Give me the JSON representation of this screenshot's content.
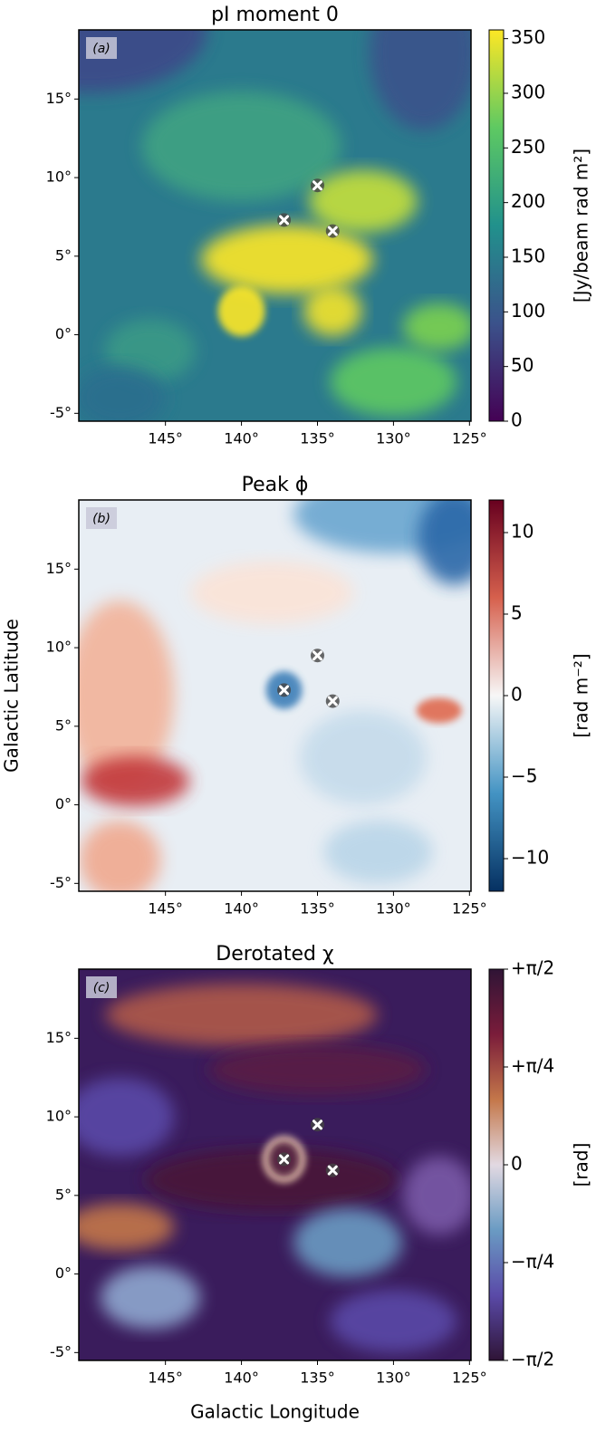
{
  "chart_data": [
    {
      "type": "map",
      "title": "pI moment 0",
      "panel_label": "(a)",
      "xlim": [
        150.7,
        124.9
      ],
      "ylim": [
        -5.5,
        19.4
      ],
      "xticks": [
        {
          "value": 145,
          "label": "145°"
        },
        {
          "value": 140,
          "label": "140°"
        },
        {
          "value": 135,
          "label": "135°"
        },
        {
          "value": 130,
          "label": "130°"
        },
        {
          "value": 125,
          "label": "125°"
        }
      ],
      "yticks": [
        {
          "value": -5,
          "label": "-5°"
        },
        {
          "value": 0,
          "label": "0°"
        },
        {
          "value": 5,
          "label": "5°"
        },
        {
          "value": 10,
          "label": "10°"
        },
        {
          "value": 15,
          "label": "15°"
        }
      ],
      "markers": {
        "x": [
          135,
          137.2,
          134
        ],
        "y": [
          9.5,
          7.3,
          6.6
        ]
      },
      "colorbar": {
        "label": "[Jy/beam rad m²]",
        "clim": [
          0,
          358
        ],
        "ticks": [
          0,
          50,
          100,
          150,
          200,
          250,
          300,
          350
        ],
        "colormap": [
          "#440154",
          "#3b528b",
          "#21918c",
          "#5ec962",
          "#fde725"
        ]
      }
    },
    {
      "type": "map",
      "title": "Peak ϕ",
      "panel_label": "(b)",
      "ylabel": "Galactic Latitude",
      "xlim": [
        150.7,
        124.9
      ],
      "ylim": [
        -5.5,
        19.4
      ],
      "xticks": [
        {
          "value": 145,
          "label": "145°"
        },
        {
          "value": 140,
          "label": "140°"
        },
        {
          "value": 135,
          "label": "135°"
        },
        {
          "value": 130,
          "label": "130°"
        },
        {
          "value": 125,
          "label": "125°"
        }
      ],
      "yticks": [
        {
          "value": -5,
          "label": "-5°"
        },
        {
          "value": 0,
          "label": "0°"
        },
        {
          "value": 5,
          "label": "5°"
        },
        {
          "value": 10,
          "label": "10°"
        },
        {
          "value": 15,
          "label": "15°"
        }
      ],
      "markers": {
        "x": [
          135,
          137.2,
          134
        ],
        "y": [
          9.5,
          7.3,
          6.6
        ]
      },
      "colorbar": {
        "label": "[rad m⁻²]",
        "clim": [
          -12,
          12
        ],
        "ticks": [
          {
            "value": -10,
            "label": "−10"
          },
          {
            "value": -5,
            "label": "−5"
          },
          0,
          5,
          10
        ],
        "colormap": [
          "#053061",
          "#4393c3",
          "#f7f7f7",
          "#d6604d",
          "#67001f"
        ]
      }
    },
    {
      "type": "map",
      "title": "Derotated χ",
      "panel_label": "(c)",
      "xlabel": "Galactic Longitude",
      "xlim": [
        150.7,
        124.9
      ],
      "ylim": [
        -5.5,
        19.4
      ],
      "xticks": [
        {
          "value": 145,
          "label": "145°"
        },
        {
          "value": 140,
          "label": "140°"
        },
        {
          "value": 135,
          "label": "135°"
        },
        {
          "value": 130,
          "label": "130°"
        },
        {
          "value": 125,
          "label": "125°"
        }
      ],
      "yticks": [
        {
          "value": -5,
          "label": "-5°"
        },
        {
          "value": 0,
          "label": "0°"
        },
        {
          "value": 5,
          "label": "5°"
        },
        {
          "value": 10,
          "label": "10°"
        },
        {
          "value": 15,
          "label": "15°"
        }
      ],
      "markers": {
        "x": [
          135,
          137.2,
          134
        ],
        "y": [
          9.5,
          7.3,
          6.6
        ]
      },
      "colorbar": {
        "label": "[rad]",
        "clim": [
          -1.5708,
          1.5708
        ],
        "ticks": [
          {
            "value": -1.5708,
            "label": "−π/2"
          },
          {
            "value": -0.7854,
            "label": "−π/4"
          },
          0,
          {
            "value": 0.7854,
            "label": "+π/4"
          },
          {
            "value": 1.5708,
            "label": "+π/2"
          }
        ],
        "colormap": [
          "#2f1436",
          "#5a4aa8",
          "#6a9bc3",
          "#e2d9e2",
          "#c4774a",
          "#7a1c3a",
          "#2f1436"
        ]
      }
    }
  ]
}
